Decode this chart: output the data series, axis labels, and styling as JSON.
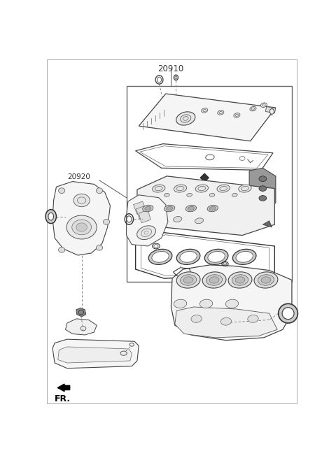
{
  "title": "20910",
  "label_20920": "20920",
  "label_FR": "FR.",
  "bg_color": "#ffffff",
  "line_color": "#555555",
  "text_color": "#333333",
  "fig_width": 4.8,
  "fig_height": 6.55,
  "dpi": 100
}
